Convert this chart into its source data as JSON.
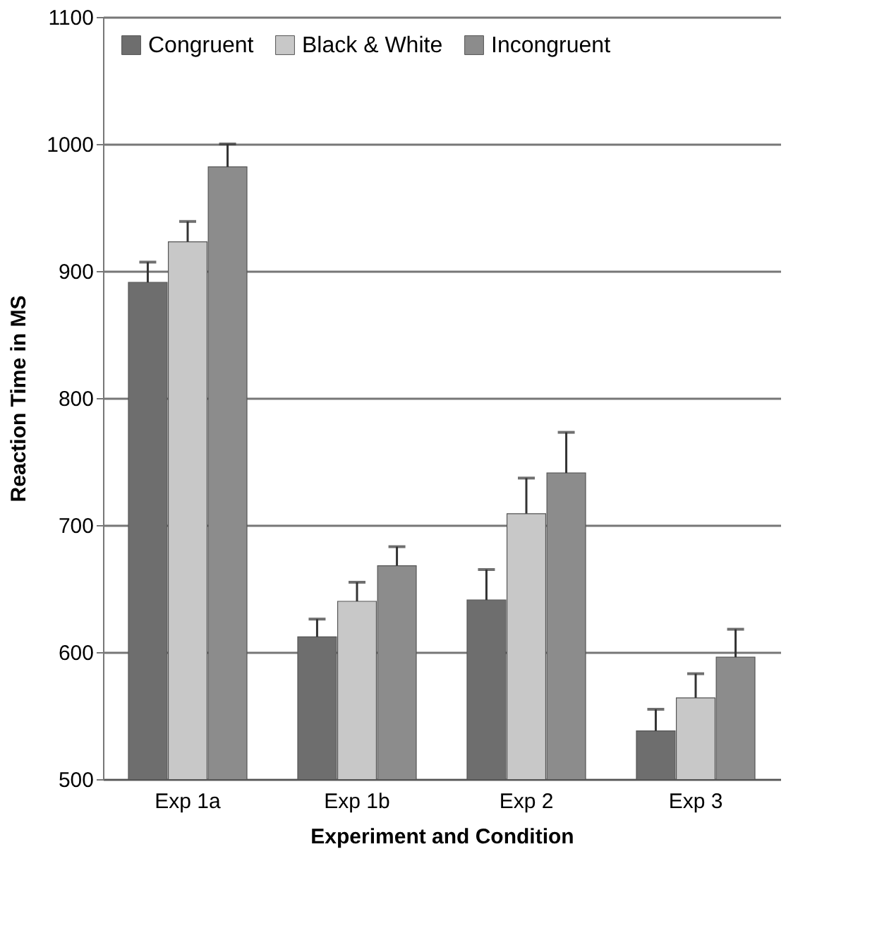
{
  "chart_data": {
    "type": "bar",
    "xlabel": "Experiment  and Condition",
    "ylabel": "Reaction Time in MS",
    "categories": [
      "Exp 1a",
      "Exp 1b",
      "Exp 2",
      "Exp 3"
    ],
    "series": [
      {
        "name": "Congruent",
        "color": "#6e6e6e",
        "values": [
          891,
          612,
          641,
          538
        ],
        "errors": [
          [
            891,
            907
          ],
          [
            612,
            626
          ],
          [
            641,
            665
          ],
          [
            538,
            555
          ]
        ]
      },
      {
        "name": "Black & White",
        "color": "#c8c8c8",
        "values": [
          923,
          640,
          709,
          564
        ],
        "errors": [
          [
            923,
            939
          ],
          [
            640,
            655
          ],
          [
            709,
            737
          ],
          [
            564,
            583
          ]
        ]
      },
      {
        "name": "Incongruent",
        "color": "#8c8c8c",
        "values": [
          982,
          668,
          741,
          596
        ],
        "errors": [
          [
            982,
            1000
          ],
          [
            668,
            683
          ],
          [
            741,
            773
          ],
          [
            596,
            618
          ]
        ]
      }
    ],
    "ylim": [
      500,
      1100
    ],
    "yticks": [
      500,
      600,
      700,
      800,
      900,
      1000,
      1100
    ],
    "grid": "y",
    "legend": "top left"
  }
}
